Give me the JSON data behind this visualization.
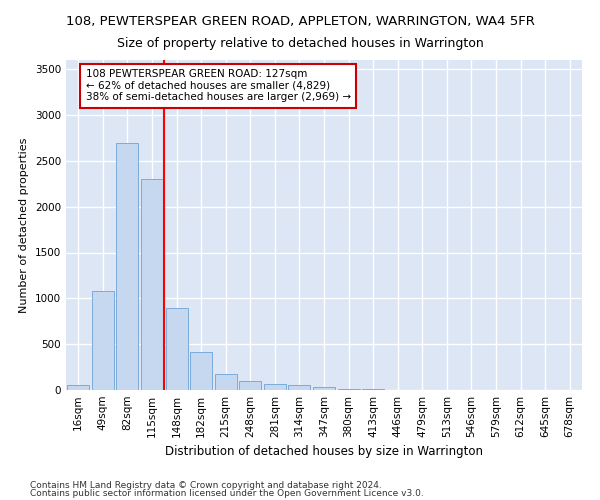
{
  "title": "108, PEWTERSPEAR GREEN ROAD, APPLETON, WARRINGTON, WA4 5FR",
  "subtitle": "Size of property relative to detached houses in Warrington",
  "xlabel": "Distribution of detached houses by size in Warrington",
  "ylabel": "Number of detached properties",
  "categories": [
    "16sqm",
    "49sqm",
    "82sqm",
    "115sqm",
    "148sqm",
    "182sqm",
    "215sqm",
    "248sqm",
    "281sqm",
    "314sqm",
    "347sqm",
    "380sqm",
    "413sqm",
    "446sqm",
    "479sqm",
    "513sqm",
    "546sqm",
    "579sqm",
    "612sqm",
    "645sqm",
    "678sqm"
  ],
  "values": [
    50,
    1075,
    2700,
    2300,
    900,
    420,
    175,
    100,
    70,
    50,
    30,
    15,
    8,
    5,
    3,
    2,
    1,
    1,
    0,
    0,
    0
  ],
  "bar_color": "#c5d8f0",
  "bar_edge_color": "#7aabda",
  "red_line_x": 3.5,
  "annotation_title": "108 PEWTERSPEAR GREEN ROAD: 127sqm",
  "annotation_line1": "← 62% of detached houses are smaller (4,829)",
  "annotation_line2": "38% of semi-detached houses are larger (2,969) →",
  "annotation_box_color": "#ffffff",
  "annotation_box_edge": "#cc0000",
  "ylim": [
    0,
    3600
  ],
  "yticks": [
    0,
    500,
    1000,
    1500,
    2000,
    2500,
    3000,
    3500
  ],
  "bg_color": "#ffffff",
  "plot_bg_color": "#dce6f5",
  "grid_color": "#ffffff",
  "footer1": "Contains HM Land Registry data © Crown copyright and database right 2024.",
  "footer2": "Contains public sector information licensed under the Open Government Licence v3.0.",
  "title_fontsize": 9.5,
  "subtitle_fontsize": 9,
  "xlabel_fontsize": 8.5,
  "ylabel_fontsize": 8,
  "tick_fontsize": 7.5,
  "footer_fontsize": 6.5
}
